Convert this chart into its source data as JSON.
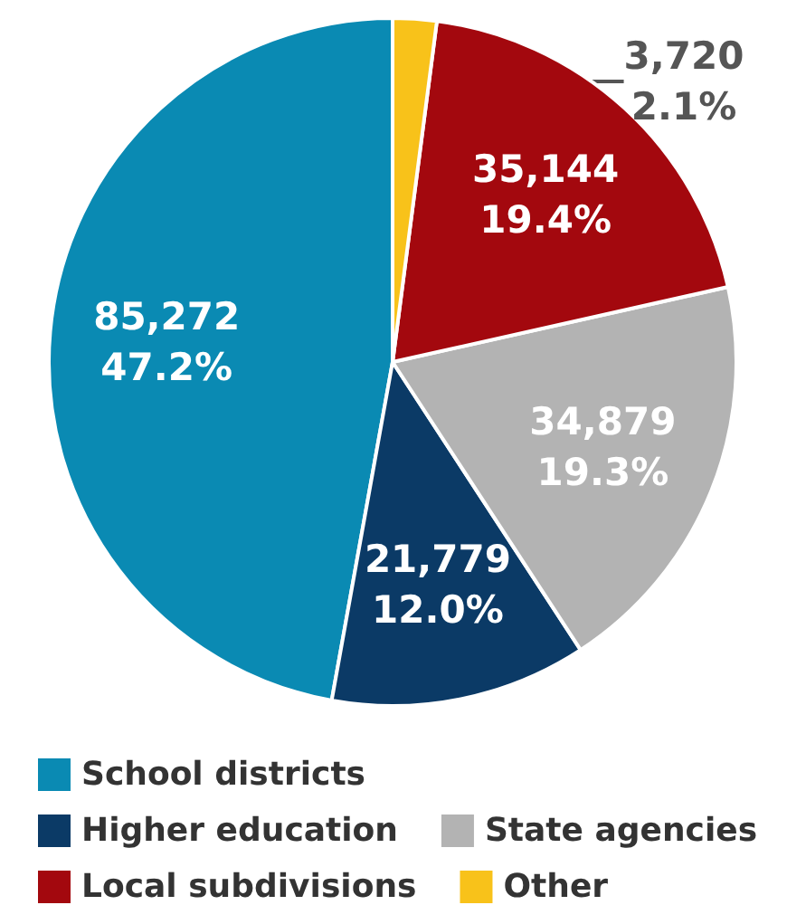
{
  "chart_data": {
    "type": "pie",
    "categories": [
      "School districts",
      "Higher education",
      "State agencies",
      "Local subdivisions",
      "Other"
    ],
    "values": [
      85272,
      21779,
      34879,
      35144,
      3720
    ],
    "colors": [
      "#0a8ab3",
      "#0b3a66",
      "#b3b3b3",
      "#a3080e",
      "#f8c21a"
    ],
    "value_labels": [
      "85,272\n47.2%",
      "21,779\n12.0%",
      "34,879\n19.3%",
      "35,144\n19.4%",
      "3,720\n2.1%"
    ],
    "legend": "bottom"
  }
}
